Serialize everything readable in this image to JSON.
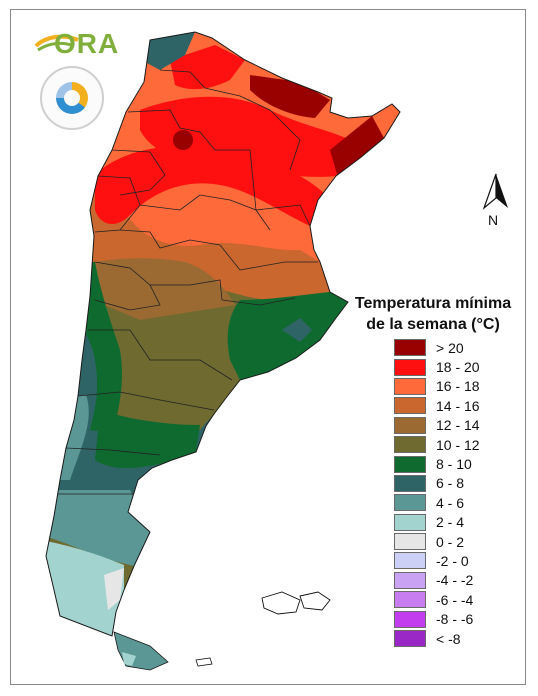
{
  "logo": {
    "wordmark": "ORA"
  },
  "north_arrow": {
    "label": "N"
  },
  "legend": {
    "title_line1": "Temperatura mínima",
    "title_line2": "de la semana (°C)",
    "items": [
      {
        "label": "> 20",
        "color": "#990000"
      },
      {
        "label": "18 - 20",
        "color": "#ff1010"
      },
      {
        "label": "16 - 18",
        "color": "#ff6a3a"
      },
      {
        "label": "14 - 16",
        "color": "#c9672f"
      },
      {
        "label": "12 - 14",
        "color": "#9a6a32"
      },
      {
        "label": "10 - 12",
        "color": "#6e6a30"
      },
      {
        "label": "8 - 10",
        "color": "#0f6a2f"
      },
      {
        "label": "6 - 8",
        "color": "#2f6466"
      },
      {
        "label": "4 - 6",
        "color": "#5b9795"
      },
      {
        "label": "2 - 4",
        "color": "#a3d3cf"
      },
      {
        "label": "0 - 2",
        "color": "#e6e6e6"
      },
      {
        "label": "-2 - 0",
        "color": "#cdd0f6"
      },
      {
        "label": "-4 - -2",
        "color": "#caa2f3"
      },
      {
        "label": "-6 - -4",
        "color": "#c77df0"
      },
      {
        "label": "-8 - -6",
        "color": "#c23ded"
      },
      {
        "label": "< -8",
        "color": "#9a28c6"
      }
    ]
  }
}
